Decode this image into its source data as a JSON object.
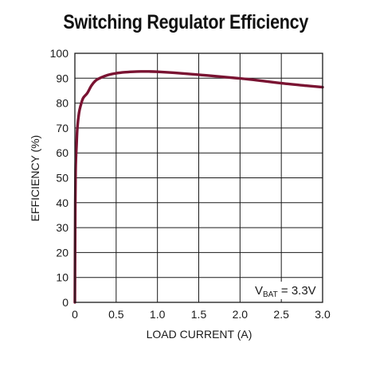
{
  "chart_data": {
    "type": "line",
    "title": "Switching Regulator Efficiency",
    "xlabel": "LOAD CURRENT (A)",
    "ylabel": "EFFICIENCY (%)",
    "xlim": [
      0,
      3.0
    ],
    "ylim": [
      0,
      100
    ],
    "x_ticks": [
      "0",
      "0.5",
      "1.0",
      "1.5",
      "2.0",
      "2.5",
      "3.0"
    ],
    "y_ticks": [
      "0",
      "10",
      "20",
      "30",
      "40",
      "50",
      "60",
      "70",
      "80",
      "90",
      "100"
    ],
    "grid": true,
    "annotation": {
      "main": "V",
      "sub": "BAT",
      "rest": " = 3.3V"
    },
    "series": [
      {
        "color": "#7a1332",
        "x": [
          0,
          0.005,
          0.01,
          0.02,
          0.03,
          0.05,
          0.07,
          0.1,
          0.15,
          0.2,
          0.25,
          0.3,
          0.4,
          0.5,
          0.6,
          0.7,
          0.8,
          0.9,
          1.0,
          1.2,
          1.5,
          1.8,
          2.0,
          2.2,
          2.5,
          2.8,
          3.0
        ],
        "y": [
          0,
          40,
          55,
          63,
          70,
          76,
          79,
          82,
          84,
          87,
          89,
          90,
          91.3,
          92,
          92.4,
          92.6,
          92.7,
          92.7,
          92.6,
          92.2,
          91.4,
          90.5,
          89.9,
          89.2,
          88.0,
          87.0,
          86.4
        ]
      }
    ]
  }
}
